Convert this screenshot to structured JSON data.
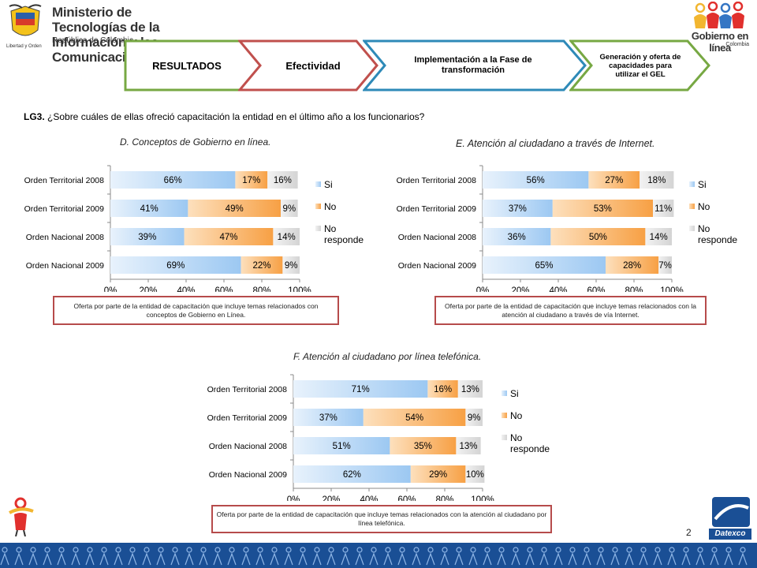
{
  "header": {
    "ministry_line1": "Ministerio de Tecnologías de la",
    "ministry_line2": "Información y las Comunicaciones",
    "ministry_sub": "República de Colombia",
    "motto": "Libertad y Orden",
    "gel_title": "Gobierno en línea",
    "gel_sub": "Colombia"
  },
  "steps": [
    {
      "label": "RESULTADOS",
      "border": "#77a843"
    },
    {
      "label": "Efectividad",
      "border": "#c0504d"
    },
    {
      "label": "Implementación  a la Fase de transformación",
      "border": "#2e8ab8"
    },
    {
      "label": "Generación y oferta de capacidades para utilizar el GEL",
      "border": "#77a843"
    }
  ],
  "question": {
    "code": "LG3.",
    "text": " ¿Sobre cuáles de ellas ofreció capacitación la entidad en el último año a los  funcionarios?"
  },
  "colors": {
    "si": "#9cc8f2",
    "no": "#f7a044",
    "nr": "#d4d4d4"
  },
  "chart_data": [
    {
      "type": "bar",
      "orientation": "horizontal-stacked-100",
      "title": "D. Conceptos  de Gobierno  en línea.",
      "categories": [
        "Orden Territorial 2008",
        "Orden Territorial 2009",
        "Orden Nacional 2008",
        "Orden Nacional 2009"
      ],
      "series": [
        {
          "name": "Si",
          "values": [
            66,
            41,
            39,
            69
          ]
        },
        {
          "name": "No",
          "values": [
            17,
            49,
            47,
            22
          ]
        },
        {
          "name": "No responde",
          "values": [
            16,
            9,
            14,
            9
          ]
        }
      ],
      "xlim": [
        0,
        100
      ],
      "xticks": [
        "0%",
        "20%",
        "40%",
        "60%",
        "80%",
        "100%"
      ],
      "legend": "right",
      "note": "Oferta por parte de la entidad de capacitación que incluye temas relacionados con conceptos de Gobierno en Línea."
    },
    {
      "type": "bar",
      "orientation": "horizontal-stacked-100",
      "title": "E. Atención al ciudadano a través de Internet.",
      "categories": [
        "Orden Territorial 2008",
        "Orden Territorial 2009",
        "Orden Nacional 2008",
        "Orden Nacional 2009"
      ],
      "series": [
        {
          "name": "Si",
          "values": [
            56,
            37,
            36,
            65
          ]
        },
        {
          "name": "No",
          "values": [
            27,
            53,
            50,
            28
          ]
        },
        {
          "name": "No responde",
          "values": [
            18,
            11,
            14,
            7
          ]
        }
      ],
      "xlim": [
        0,
        100
      ],
      "xticks": [
        "0%",
        "20%",
        "40%",
        "60%",
        "80%",
        "100%"
      ],
      "legend": "right",
      "note": "Oferta por parte de la entidad de capacitación que incluye temas relacionados con la atención al ciudadano a través de vía Internet."
    },
    {
      "type": "bar",
      "orientation": "horizontal-stacked-100",
      "title": "F. Atención al ciudadano por línea telefónica.",
      "categories": [
        "Orden Territorial 2008",
        "Orden Territorial 2009",
        "Orden Nacional 2008",
        "Orden Nacional 2009"
      ],
      "series": [
        {
          "name": "Si",
          "values": [
            71,
            37,
            51,
            62
          ]
        },
        {
          "name": "No",
          "values": [
            16,
            54,
            35,
            29
          ]
        },
        {
          "name": "No responde",
          "values": [
            13,
            9,
            13,
            10
          ]
        }
      ],
      "xlim": [
        0,
        100
      ],
      "xticks": [
        "0%",
        "20%",
        "40%",
        "60%",
        "80%",
        "100%"
      ],
      "legend": "right",
      "note": "Oferta por parte de la entidad de capacitación que incluye temas relacionados con la atención al ciudadano por línea telefónica."
    }
  ],
  "footer": {
    "page_number": "2",
    "brand": "Datexco"
  }
}
